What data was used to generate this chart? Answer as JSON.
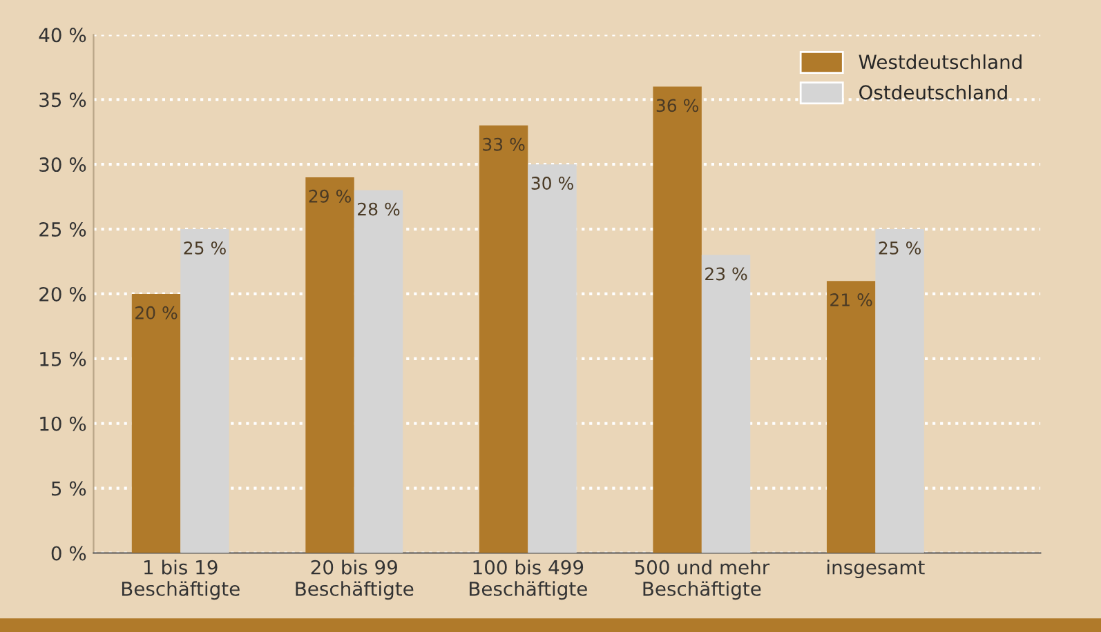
{
  "chart_data": {
    "type": "bar",
    "categories": [
      "1 bis 19\nBeschäftigte",
      "20 bis 99\nBeschäftigte",
      "100 bis 499\nBeschäftigte",
      "500 und mehr\nBeschäftigte",
      "insgesamt"
    ],
    "series": [
      {
        "name": "Westdeutschland",
        "color": "#b07a2a",
        "values": [
          20,
          29,
          33,
          36,
          21
        ],
        "value_labels": [
          "20 %",
          "29 %",
          "33 %",
          "36 %",
          "21 %"
        ]
      },
      {
        "name": "Ostdeutschland",
        "color": "#d5d5d5",
        "values": [
          25,
          28,
          30,
          23,
          25
        ],
        "value_labels": [
          "25 %",
          "28 %",
          "30 %",
          "23 %",
          "25 %"
        ]
      }
    ],
    "ylim": [
      0,
      40
    ],
    "yticks": [
      {
        "value": 0,
        "label": "0 %"
      },
      {
        "value": 5,
        "label": "5 %"
      },
      {
        "value": 10,
        "label": "10 %"
      },
      {
        "value": 15,
        "label": "15 %"
      },
      {
        "value": 20,
        "label": "20 %"
      },
      {
        "value": 25,
        "label": "25 %"
      },
      {
        "value": 30,
        "label": "30 %"
      },
      {
        "value": 35,
        "label": "35 %"
      },
      {
        "value": 40,
        "label": "40 %"
      }
    ],
    "grid": "y",
    "legend": "top right"
  }
}
